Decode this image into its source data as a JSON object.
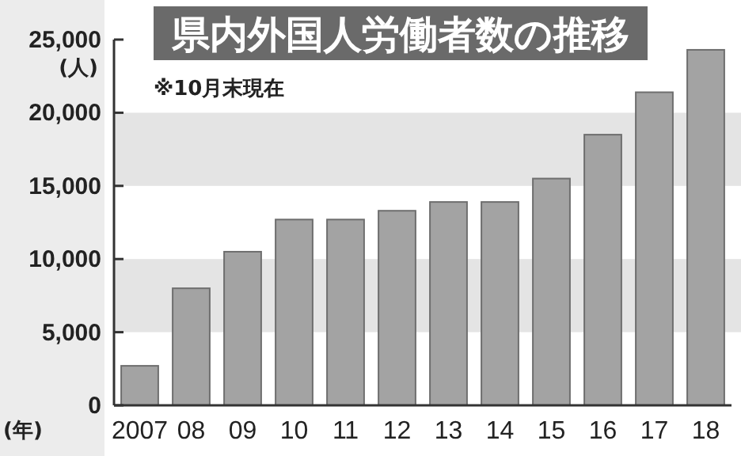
{
  "chart_data": {
    "type": "bar",
    "title": "県内外国人労働者数の推移",
    "annotations": [
      "※10月末現在"
    ],
    "ylabel": "(人)",
    "xlabel": "(年)",
    "categories": [
      "2007",
      "08",
      "09",
      "10",
      "11",
      "12",
      "13",
      "14",
      "15",
      "16",
      "17",
      "18"
    ],
    "values": [
      2700,
      8000,
      10500,
      12700,
      12700,
      13300,
      13900,
      13900,
      15500,
      18500,
      21400,
      24300
    ],
    "color": "#a3a3a3",
    "ylim": [
      0,
      25000
    ],
    "yticks": [
      {
        "value": 0,
        "label": "0"
      },
      {
        "value": 5000,
        "label": "5,000"
      },
      {
        "value": 10000,
        "label": "10,000"
      },
      {
        "value": 15000,
        "label": "15,000"
      },
      {
        "value": 20000,
        "label": "20,000"
      },
      {
        "value": 25000,
        "label": "25,000"
      }
    ],
    "bands": [
      {
        "axis": "y",
        "from": 5000,
        "to": 10000,
        "color": "#e4e4e4"
      },
      {
        "axis": "y",
        "from": 15000,
        "to": 20000,
        "color": "#e4e4e4"
      }
    ]
  }
}
